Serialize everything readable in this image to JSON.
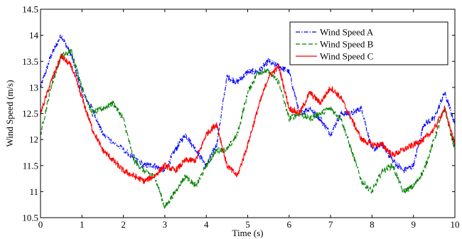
{
  "chart_data": {
    "type": "line",
    "title": "",
    "xlabel": "Time (s)",
    "ylabel": "Wind Speed (m/s)",
    "xlim": [
      0,
      10
    ],
    "ylim": [
      10.5,
      14.5
    ],
    "xticks": [
      "0",
      "1",
      "2",
      "3",
      "4",
      "5",
      "6",
      "7",
      "8",
      "9",
      "10"
    ],
    "yticks": [
      "10.5",
      "11",
      "11.5",
      "12",
      "12.5",
      "13",
      "13.5",
      "14",
      "14.5"
    ],
    "grid": false,
    "legend_position": "top-right",
    "series": [
      {
        "name": "Wind Speed A",
        "color": "#0000ff",
        "dash": "dash-dot",
        "x": [
          0,
          0.25,
          0.5,
          0.75,
          1.0,
          1.25,
          1.5,
          2.0,
          2.5,
          2.75,
          3.0,
          3.25,
          3.5,
          3.75,
          4.0,
          4.25,
          4.5,
          4.75,
          5.0,
          5.25,
          5.5,
          5.75,
          6.0,
          6.25,
          6.5,
          6.75,
          7.0,
          7.25,
          7.5,
          7.75,
          8.0,
          8.25,
          8.5,
          8.75,
          9.0,
          9.25,
          9.5,
          9.75,
          10.0
        ],
        "y": [
          13.0,
          13.6,
          14.0,
          13.6,
          12.9,
          12.6,
          12.1,
          11.8,
          11.5,
          11.5,
          11.4,
          11.8,
          12.1,
          11.8,
          11.5,
          11.9,
          13.2,
          13.1,
          13.3,
          13.3,
          13.5,
          13.4,
          13.3,
          12.5,
          12.6,
          12.4,
          12.1,
          12.5,
          12.5,
          12.6,
          11.8,
          11.9,
          11.6,
          11.4,
          11.5,
          12.3,
          12.4,
          12.9,
          12.3
        ]
      },
      {
        "name": "Wind Speed B",
        "color": "#008000",
        "dash": "dashed",
        "x": [
          0,
          0.25,
          0.5,
          0.75,
          1.0,
          1.25,
          1.5,
          1.75,
          2.0,
          2.25,
          2.5,
          2.75,
          3.0,
          3.25,
          3.5,
          3.75,
          4.0,
          4.25,
          4.5,
          4.75,
          5.0,
          5.25,
          5.5,
          5.75,
          6.0,
          6.25,
          6.5,
          6.75,
          7.0,
          7.25,
          7.5,
          7.75,
          8.0,
          8.25,
          8.5,
          8.75,
          9.0,
          9.25,
          9.5,
          9.75,
          10.0
        ],
        "y": [
          12.1,
          13.0,
          13.6,
          13.7,
          13.0,
          12.5,
          12.6,
          12.7,
          12.4,
          11.6,
          11.4,
          11.3,
          10.7,
          11.0,
          11.3,
          11.1,
          11.5,
          11.8,
          11.8,
          12.1,
          12.9,
          13.3,
          13.3,
          13.1,
          12.4,
          12.5,
          12.4,
          12.5,
          12.6,
          12.4,
          11.8,
          11.2,
          11.0,
          11.4,
          11.5,
          11.0,
          11.1,
          11.4,
          12.0,
          12.6,
          11.8
        ]
      },
      {
        "name": "Wind Speed C",
        "color": "#ff0000",
        "dash": "solid",
        "x": [
          0,
          0.25,
          0.5,
          0.75,
          1.0,
          1.25,
          1.5,
          1.75,
          2.0,
          2.25,
          2.5,
          2.75,
          3.0,
          3.25,
          3.5,
          3.75,
          4.0,
          4.25,
          4.5,
          4.75,
          5.0,
          5.25,
          5.5,
          5.75,
          6.0,
          6.25,
          6.5,
          6.75,
          7.0,
          7.25,
          7.5,
          7.75,
          8.0,
          8.25,
          8.5,
          8.75,
          9.0,
          9.25,
          9.5,
          9.75,
          10.0
        ],
        "y": [
          12.5,
          13.1,
          13.6,
          13.4,
          12.8,
          12.2,
          11.8,
          11.6,
          11.4,
          11.3,
          11.2,
          11.3,
          11.5,
          11.4,
          11.6,
          11.6,
          12.1,
          12.3,
          11.5,
          11.3,
          11.9,
          12.6,
          13.2,
          13.4,
          12.6,
          12.5,
          12.9,
          12.7,
          13.0,
          12.8,
          12.4,
          12.0,
          11.9,
          11.9,
          11.7,
          11.8,
          11.9,
          12.0,
          12.2,
          12.6,
          11.9
        ]
      }
    ]
  }
}
